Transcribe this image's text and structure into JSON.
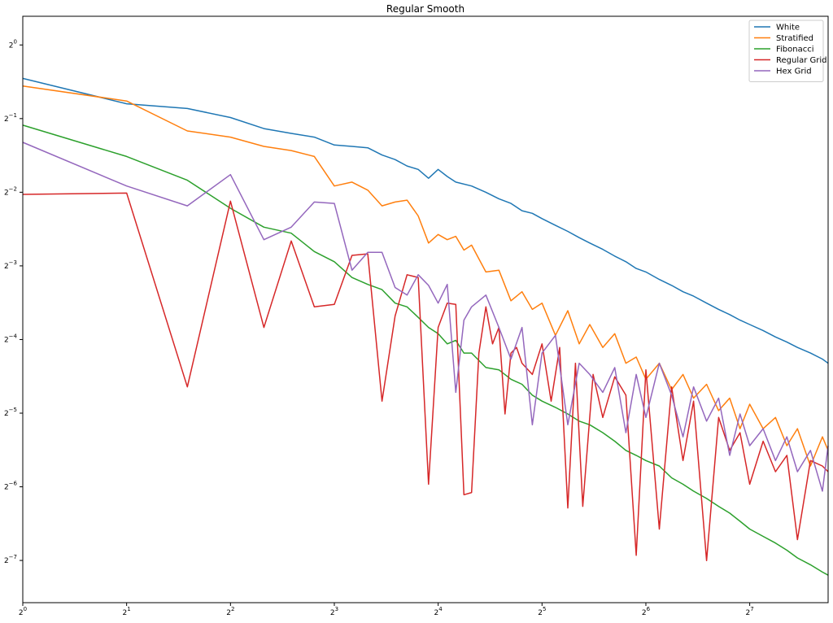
{
  "chart_data": {
    "type": "line",
    "title": "Regular Smooth",
    "xlabel": "",
    "ylabel": "",
    "xscale": "log2",
    "yscale": "log2",
    "xlim": [
      1,
      216
    ],
    "ylim": [
      0.00525,
      1.31
    ],
    "x_ticks": [
      {
        "base": "2",
        "exp": "0"
      },
      {
        "base": "2",
        "exp": "1"
      },
      {
        "base": "2",
        "exp": "2"
      },
      {
        "base": "2",
        "exp": "3"
      },
      {
        "base": "2",
        "exp": "4"
      },
      {
        "base": "2",
        "exp": "5"
      },
      {
        "base": "2",
        "exp": "6"
      },
      {
        "base": "2",
        "exp": "7"
      }
    ],
    "y_ticks": [
      {
        "base": "2",
        "exp": "0"
      },
      {
        "base": "2",
        "exp": "−1"
      },
      {
        "base": "2",
        "exp": "−2"
      },
      {
        "base": "2",
        "exp": "−3"
      },
      {
        "base": "2",
        "exp": "−4"
      },
      {
        "base": "2",
        "exp": "−5"
      },
      {
        "base": "2",
        "exp": "−6"
      },
      {
        "base": "2",
        "exp": "−7"
      }
    ],
    "grid": false,
    "legend_position": "top-right",
    "series": [
      {
        "name": "White",
        "color": "#1f77b4",
        "x": [
          1,
          2,
          3,
          4,
          5,
          6,
          7,
          8,
          9,
          10,
          11,
          12,
          13,
          14,
          15,
          16,
          17,
          18,
          20,
          22,
          24,
          26,
          28,
          30,
          32,
          35,
          38,
          41,
          44,
          48,
          52,
          56,
          60,
          64,
          70,
          76,
          82,
          88,
          96,
          104,
          112,
          120,
          128,
          140,
          152,
          164,
          176,
          192,
          208,
          216
        ],
        "y": [
          0.73,
          0.575,
          0.55,
          0.505,
          0.455,
          0.435,
          0.42,
          0.39,
          0.385,
          0.38,
          0.355,
          0.34,
          0.32,
          0.31,
          0.285,
          0.31,
          0.29,
          0.275,
          0.265,
          0.25,
          0.235,
          0.225,
          0.21,
          0.205,
          0.195,
          0.183,
          0.173,
          0.163,
          0.155,
          0.146,
          0.137,
          0.13,
          0.122,
          0.118,
          0.11,
          0.104,
          0.098,
          0.094,
          0.088,
          0.083,
          0.079,
          0.075,
          0.072,
          0.068,
          0.064,
          0.061,
          0.058,
          0.055,
          0.052,
          0.05
        ]
      },
      {
        "name": "Stratified",
        "color": "#ff7f0e",
        "x": [
          1,
          2,
          3,
          4,
          5,
          6,
          7,
          8,
          9,
          10,
          11,
          12,
          13,
          14,
          15,
          16,
          17,
          18,
          19,
          20,
          22,
          24,
          26,
          28,
          30,
          32,
          35,
          38,
          41,
          44,
          48,
          52,
          56,
          60,
          64,
          70,
          76,
          82,
          88,
          96,
          104,
          112,
          120,
          128,
          140,
          152,
          164,
          176,
          192,
          208,
          216
        ],
        "y": [
          0.68,
          0.59,
          0.445,
          0.42,
          0.385,
          0.37,
          0.35,
          0.265,
          0.275,
          0.255,
          0.22,
          0.228,
          0.232,
          0.2,
          0.155,
          0.168,
          0.16,
          0.165,
          0.145,
          0.152,
          0.118,
          0.12,
          0.09,
          0.098,
          0.083,
          0.088,
          0.065,
          0.082,
          0.06,
          0.072,
          0.058,
          0.066,
          0.05,
          0.053,
          0.043,
          0.05,
          0.039,
          0.045,
          0.036,
          0.041,
          0.032,
          0.036,
          0.027,
          0.034,
          0.027,
          0.03,
          0.023,
          0.027,
          0.019,
          0.025,
          0.022
        ]
      },
      {
        "name": "Fibonacci",
        "color": "#2ca02c",
        "x": [
          1,
          2,
          3,
          4,
          5,
          6,
          7,
          8,
          9,
          10,
          11,
          12,
          13,
          14,
          15,
          16,
          17,
          18,
          19,
          20,
          22,
          24,
          26,
          28,
          30,
          32,
          35,
          38,
          41,
          44,
          48,
          52,
          56,
          60,
          64,
          70,
          76,
          82,
          88,
          96,
          104,
          112,
          120,
          128,
          140,
          152,
          164,
          176,
          192,
          208,
          216
        ],
        "y": [
          0.47,
          0.35,
          0.28,
          0.215,
          0.18,
          0.17,
          0.143,
          0.13,
          0.112,
          0.105,
          0.1,
          0.088,
          0.085,
          0.077,
          0.07,
          0.066,
          0.06,
          0.062,
          0.055,
          0.055,
          0.048,
          0.047,
          0.043,
          0.041,
          0.037,
          0.035,
          0.033,
          0.031,
          0.029,
          0.028,
          0.026,
          0.024,
          0.022,
          0.021,
          0.02,
          0.019,
          0.017,
          0.016,
          0.015,
          0.014,
          0.013,
          0.0122,
          0.0113,
          0.0105,
          0.0098,
          0.0092,
          0.0086,
          0.008,
          0.0075,
          0.007,
          0.0068
        ]
      },
      {
        "name": "Regular Grid",
        "color": "#d62728",
        "x": [
          1,
          2,
          3,
          4,
          5,
          6,
          7,
          8,
          9,
          10,
          11,
          12,
          13,
          14,
          15,
          16,
          17,
          18,
          19,
          20,
          21,
          22,
          23,
          24,
          25,
          26,
          27,
          28,
          30,
          32,
          34,
          36,
          38,
          40,
          42,
          45,
          48,
          52,
          56,
          60,
          64,
          70,
          76,
          82,
          88,
          96,
          104,
          112,
          120,
          128,
          140,
          152,
          164,
          176,
          192,
          208,
          216
        ],
        "y": [
          0.245,
          0.248,
          0.04,
          0.23,
          0.07,
          0.158,
          0.085,
          0.087,
          0.138,
          0.14,
          0.035,
          0.078,
          0.115,
          0.112,
          0.016,
          0.07,
          0.088,
          0.087,
          0.0145,
          0.0148,
          0.055,
          0.085,
          0.06,
          0.07,
          0.031,
          0.055,
          0.058,
          0.05,
          0.045,
          0.06,
          0.035,
          0.058,
          0.0128,
          0.05,
          0.013,
          0.045,
          0.03,
          0.044,
          0.037,
          0.0082,
          0.047,
          0.0105,
          0.04,
          0.02,
          0.035,
          0.0078,
          0.03,
          0.022,
          0.026,
          0.016,
          0.024,
          0.018,
          0.021,
          0.0095,
          0.02,
          0.019,
          0.018
        ]
      },
      {
        "name": "Hex Grid",
        "color": "#9467bd",
        "x": [
          1,
          2,
          3,
          4,
          5,
          6,
          7,
          8,
          9,
          10,
          11,
          12,
          13,
          14,
          15,
          16,
          17,
          18,
          19,
          20,
          22,
          24,
          26,
          28,
          30,
          32,
          35,
          38,
          41,
          44,
          48,
          52,
          56,
          60,
          64,
          70,
          76,
          82,
          88,
          96,
          104,
          112,
          120,
          128,
          140,
          152,
          164,
          176,
          192,
          208,
          216
        ],
        "y": [
          0.4,
          0.265,
          0.22,
          0.295,
          0.16,
          0.18,
          0.228,
          0.225,
          0.12,
          0.142,
          0.142,
          0.102,
          0.095,
          0.115,
          0.104,
          0.088,
          0.105,
          0.038,
          0.075,
          0.085,
          0.095,
          0.07,
          0.052,
          0.07,
          0.028,
          0.055,
          0.065,
          0.028,
          0.05,
          0.045,
          0.038,
          0.048,
          0.026,
          0.045,
          0.03,
          0.05,
          0.037,
          0.025,
          0.04,
          0.029,
          0.036,
          0.021,
          0.031,
          0.023,
          0.027,
          0.02,
          0.025,
          0.018,
          0.022,
          0.015,
          0.023
        ]
      }
    ]
  }
}
